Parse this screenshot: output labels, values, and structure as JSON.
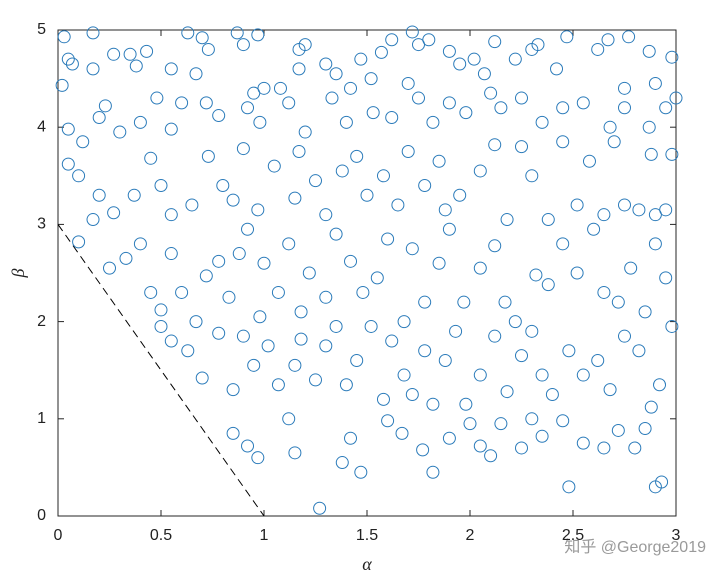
{
  "chart_data": {
    "type": "scatter",
    "xlabel": "α",
    "ylabel": "β",
    "xlim": [
      0,
      3
    ],
    "ylim": [
      0,
      5
    ],
    "xticks": [
      0,
      0.5,
      1,
      1.5,
      2,
      2.5,
      3
    ],
    "yticks": [
      0,
      1,
      2,
      3,
      4,
      5
    ],
    "series": [
      {
        "color": "#2b7bba",
        "marker": "circle",
        "points": [
          [
            0.02,
            4.43
          ],
          [
            0.05,
            4.7
          ],
          [
            0.03,
            4.93
          ],
          [
            0.07,
            4.65
          ],
          [
            0.17,
            4.97
          ],
          [
            0.17,
            4.6
          ],
          [
            0.23,
            4.22
          ],
          [
            0.27,
            4.75
          ],
          [
            0.35,
            4.75
          ],
          [
            0.43,
            4.78
          ],
          [
            0.38,
            4.63
          ],
          [
            0.55,
            4.6
          ],
          [
            0.63,
            4.97
          ],
          [
            0.7,
            4.92
          ],
          [
            0.73,
            4.8
          ],
          [
            0.67,
            4.55
          ],
          [
            0.87,
            4.97
          ],
          [
            0.9,
            4.85
          ],
          [
            0.97,
            4.95
          ],
          [
            0.95,
            4.35
          ],
          [
            1.0,
            4.4
          ],
          [
            1.08,
            4.4
          ],
          [
            1.17,
            4.6
          ],
          [
            1.17,
            4.8
          ],
          [
            1.2,
            4.85
          ],
          [
            1.3,
            4.65
          ],
          [
            1.35,
            4.55
          ],
          [
            1.42,
            4.4
          ],
          [
            1.47,
            4.7
          ],
          [
            1.52,
            4.5
          ],
          [
            1.57,
            4.77
          ],
          [
            1.62,
            4.9
          ],
          [
            1.72,
            4.98
          ],
          [
            1.75,
            4.85
          ],
          [
            1.8,
            4.9
          ],
          [
            1.9,
            4.78
          ],
          [
            1.95,
            4.65
          ],
          [
            2.02,
            4.7
          ],
          [
            2.07,
            4.55
          ],
          [
            2.12,
            4.88
          ],
          [
            2.22,
            4.7
          ],
          [
            2.3,
            4.8
          ],
          [
            2.33,
            4.85
          ],
          [
            2.42,
            4.6
          ],
          [
            2.47,
            4.93
          ],
          [
            2.62,
            4.8
          ],
          [
            2.67,
            4.9
          ],
          [
            2.77,
            4.93
          ],
          [
            2.87,
            4.78
          ],
          [
            2.98,
            4.72
          ],
          [
            2.75,
            4.4
          ],
          [
            2.9,
            4.45
          ],
          [
            0.05,
            3.98
          ],
          [
            0.12,
            3.85
          ],
          [
            0.2,
            4.1
          ],
          [
            0.3,
            3.95
          ],
          [
            0.4,
            4.05
          ],
          [
            0.48,
            4.3
          ],
          [
            0.55,
            3.98
          ],
          [
            0.6,
            4.25
          ],
          [
            0.72,
            4.25
          ],
          [
            0.78,
            4.12
          ],
          [
            0.92,
            4.2
          ],
          [
            0.98,
            4.05
          ],
          [
            1.12,
            4.25
          ],
          [
            1.2,
            3.95
          ],
          [
            1.33,
            4.3
          ],
          [
            1.4,
            4.05
          ],
          [
            1.53,
            4.15
          ],
          [
            1.62,
            4.1
          ],
          [
            1.7,
            4.45
          ],
          [
            1.75,
            4.3
          ],
          [
            1.82,
            4.05
          ],
          [
            1.9,
            4.25
          ],
          [
            1.98,
            4.15
          ],
          [
            2.1,
            4.35
          ],
          [
            2.15,
            4.2
          ],
          [
            2.25,
            4.3
          ],
          [
            2.35,
            4.05
          ],
          [
            2.45,
            4.2
          ],
          [
            2.55,
            4.25
          ],
          [
            2.68,
            4.0
          ],
          [
            2.75,
            4.2
          ],
          [
            2.87,
            4.0
          ],
          [
            2.95,
            4.2
          ],
          [
            3.0,
            4.3
          ],
          [
            0.05,
            3.62
          ],
          [
            0.1,
            3.5
          ],
          [
            0.2,
            3.3
          ],
          [
            0.27,
            3.12
          ],
          [
            0.37,
            3.3
          ],
          [
            0.45,
            3.68
          ],
          [
            0.5,
            3.4
          ],
          [
            0.55,
            3.1
          ],
          [
            0.65,
            3.2
          ],
          [
            0.73,
            3.7
          ],
          [
            0.8,
            3.4
          ],
          [
            0.85,
            3.25
          ],
          [
            0.9,
            3.78
          ],
          [
            0.97,
            3.15
          ],
          [
            1.05,
            3.6
          ],
          [
            1.15,
            3.27
          ],
          [
            1.17,
            3.75
          ],
          [
            1.25,
            3.45
          ],
          [
            1.3,
            3.1
          ],
          [
            1.38,
            3.55
          ],
          [
            1.45,
            3.7
          ],
          [
            1.5,
            3.3
          ],
          [
            1.58,
            3.5
          ],
          [
            1.65,
            3.2
          ],
          [
            1.7,
            3.75
          ],
          [
            1.78,
            3.4
          ],
          [
            1.85,
            3.65
          ],
          [
            1.88,
            3.15
          ],
          [
            1.95,
            3.3
          ],
          [
            2.05,
            3.55
          ],
          [
            2.12,
            3.82
          ],
          [
            2.18,
            3.05
          ],
          [
            2.25,
            3.8
          ],
          [
            2.3,
            3.5
          ],
          [
            2.38,
            3.05
          ],
          [
            2.45,
            3.85
          ],
          [
            2.52,
            3.2
          ],
          [
            2.58,
            3.65
          ],
          [
            2.65,
            3.1
          ],
          [
            2.7,
            3.85
          ],
          [
            2.75,
            3.2
          ],
          [
            2.82,
            3.15
          ],
          [
            2.88,
            3.72
          ],
          [
            2.9,
            3.1
          ],
          [
            2.95,
            3.15
          ],
          [
            2.98,
            3.72
          ],
          [
            0.1,
            2.82
          ],
          [
            0.17,
            3.05
          ],
          [
            0.25,
            2.55
          ],
          [
            0.33,
            2.65
          ],
          [
            0.4,
            2.8
          ],
          [
            0.45,
            2.3
          ],
          [
            0.5,
            2.12
          ],
          [
            0.55,
            2.7
          ],
          [
            0.6,
            2.3
          ],
          [
            0.67,
            2.0
          ],
          [
            0.72,
            2.47
          ],
          [
            0.78,
            2.62
          ],
          [
            0.83,
            2.25
          ],
          [
            0.88,
            2.7
          ],
          [
            0.92,
            2.95
          ],
          [
            0.98,
            2.05
          ],
          [
            1.0,
            2.6
          ],
          [
            1.07,
            2.3
          ],
          [
            1.12,
            2.8
          ],
          [
            1.18,
            2.1
          ],
          [
            1.22,
            2.5
          ],
          [
            1.3,
            2.25
          ],
          [
            1.35,
            2.9
          ],
          [
            1.42,
            2.62
          ],
          [
            1.48,
            2.3
          ],
          [
            1.55,
            2.45
          ],
          [
            1.6,
            2.85
          ],
          [
            1.68,
            2.0
          ],
          [
            1.72,
            2.75
          ],
          [
            1.78,
            2.2
          ],
          [
            1.85,
            2.6
          ],
          [
            1.9,
            2.95
          ],
          [
            1.97,
            2.2
          ],
          [
            2.05,
            2.55
          ],
          [
            2.12,
            2.78
          ],
          [
            2.17,
            2.2
          ],
          [
            2.22,
            2.0
          ],
          [
            2.32,
            2.48
          ],
          [
            2.38,
            2.38
          ],
          [
            2.45,
            2.8
          ],
          [
            2.52,
            2.5
          ],
          [
            2.6,
            2.95
          ],
          [
            2.65,
            2.3
          ],
          [
            2.72,
            2.2
          ],
          [
            2.78,
            2.55
          ],
          [
            2.85,
            2.1
          ],
          [
            2.9,
            2.8
          ],
          [
            2.95,
            2.45
          ],
          [
            0.5,
            1.95
          ],
          [
            0.55,
            1.8
          ],
          [
            0.63,
            1.7
          ],
          [
            0.7,
            1.42
          ],
          [
            0.78,
            1.88
          ],
          [
            0.85,
            1.3
          ],
          [
            0.9,
            1.85
          ],
          [
            0.95,
            1.55
          ],
          [
            1.02,
            1.75
          ],
          [
            1.07,
            1.35
          ],
          [
            1.15,
            1.55
          ],
          [
            1.18,
            1.82
          ],
          [
            1.25,
            1.4
          ],
          [
            1.3,
            1.75
          ],
          [
            1.35,
            1.95
          ],
          [
            1.4,
            1.35
          ],
          [
            1.45,
            1.6
          ],
          [
            1.52,
            1.95
          ],
          [
            1.58,
            1.2
          ],
          [
            1.62,
            1.8
          ],
          [
            1.68,
            1.45
          ],
          [
            1.72,
            1.25
          ],
          [
            1.78,
            1.7
          ],
          [
            1.82,
            1.15
          ],
          [
            1.88,
            1.6
          ],
          [
            1.93,
            1.9
          ],
          [
            1.98,
            1.15
          ],
          [
            2.05,
            1.45
          ],
          [
            2.12,
            1.85
          ],
          [
            2.18,
            1.28
          ],
          [
            2.25,
            1.65
          ],
          [
            2.3,
            1.9
          ],
          [
            2.35,
            1.45
          ],
          [
            2.4,
            1.25
          ],
          [
            2.48,
            1.7
          ],
          [
            2.55,
            1.45
          ],
          [
            2.62,
            1.6
          ],
          [
            2.68,
            1.3
          ],
          [
            2.75,
            1.85
          ],
          [
            2.82,
            1.7
          ],
          [
            2.88,
            1.12
          ],
          [
            2.92,
            1.35
          ],
          [
            2.98,
            1.95
          ],
          [
            0.85,
            0.85
          ],
          [
            0.92,
            0.72
          ],
          [
            0.97,
            0.6
          ],
          [
            1.12,
            1.0
          ],
          [
            1.15,
            0.65
          ],
          [
            1.27,
            0.08
          ],
          [
            1.38,
            0.55
          ],
          [
            1.42,
            0.8
          ],
          [
            1.47,
            0.45
          ],
          [
            1.6,
            0.98
          ],
          [
            1.67,
            0.85
          ],
          [
            1.77,
            0.68
          ],
          [
            1.82,
            0.45
          ],
          [
            1.9,
            0.8
          ],
          [
            2.0,
            0.95
          ],
          [
            2.05,
            0.72
          ],
          [
            2.1,
            0.62
          ],
          [
            2.15,
            0.95
          ],
          [
            2.25,
            0.7
          ],
          [
            2.3,
            1.0
          ],
          [
            2.35,
            0.82
          ],
          [
            2.45,
            0.98
          ],
          [
            2.48,
            0.3
          ],
          [
            2.55,
            0.75
          ],
          [
            2.65,
            0.7
          ],
          [
            2.72,
            0.88
          ],
          [
            2.8,
            0.7
          ],
          [
            2.85,
            0.9
          ],
          [
            2.9,
            0.3
          ],
          [
            2.93,
            0.35
          ]
        ]
      }
    ],
    "lines": [
      {
        "color": "#000000",
        "dashed": true,
        "x": [
          0,
          1
        ],
        "y": [
          3,
          0
        ]
      }
    ]
  },
  "watermark": "知乎 @George2019"
}
